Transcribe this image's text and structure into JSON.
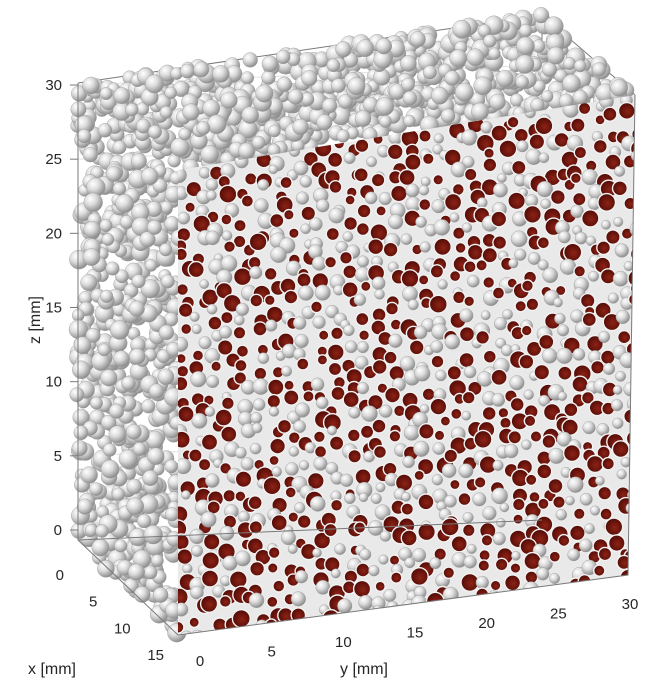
{
  "chart_data": {
    "type": "scatter",
    "subtype": "3d-sphere-packing",
    "title": "",
    "xlabel": "x [mm]",
    "ylabel": "y [mm]",
    "zlabel": "z [mm]",
    "xlim": [
      0,
      15
    ],
    "ylim": [
      0,
      30
    ],
    "zlim": [
      0,
      30
    ],
    "xticks": [
      "0",
      "5",
      "10",
      "15"
    ],
    "yticks": [
      "0",
      "5",
      "10",
      "15",
      "20",
      "25",
      "30"
    ],
    "zticks": [
      "0",
      "5",
      "10",
      "15",
      "20",
      "25",
      "30"
    ],
    "grid": true,
    "colors": {
      "particle": "#d9d9d9",
      "particle_highlight": "#ffffff",
      "particle_shadow": "#8c8c8c",
      "cut_section": "#7a1810",
      "cut_section_dark": "#4a0a05",
      "axis_line": "#7a7a7a",
      "gridline": "#e2e2e2"
    }
  }
}
